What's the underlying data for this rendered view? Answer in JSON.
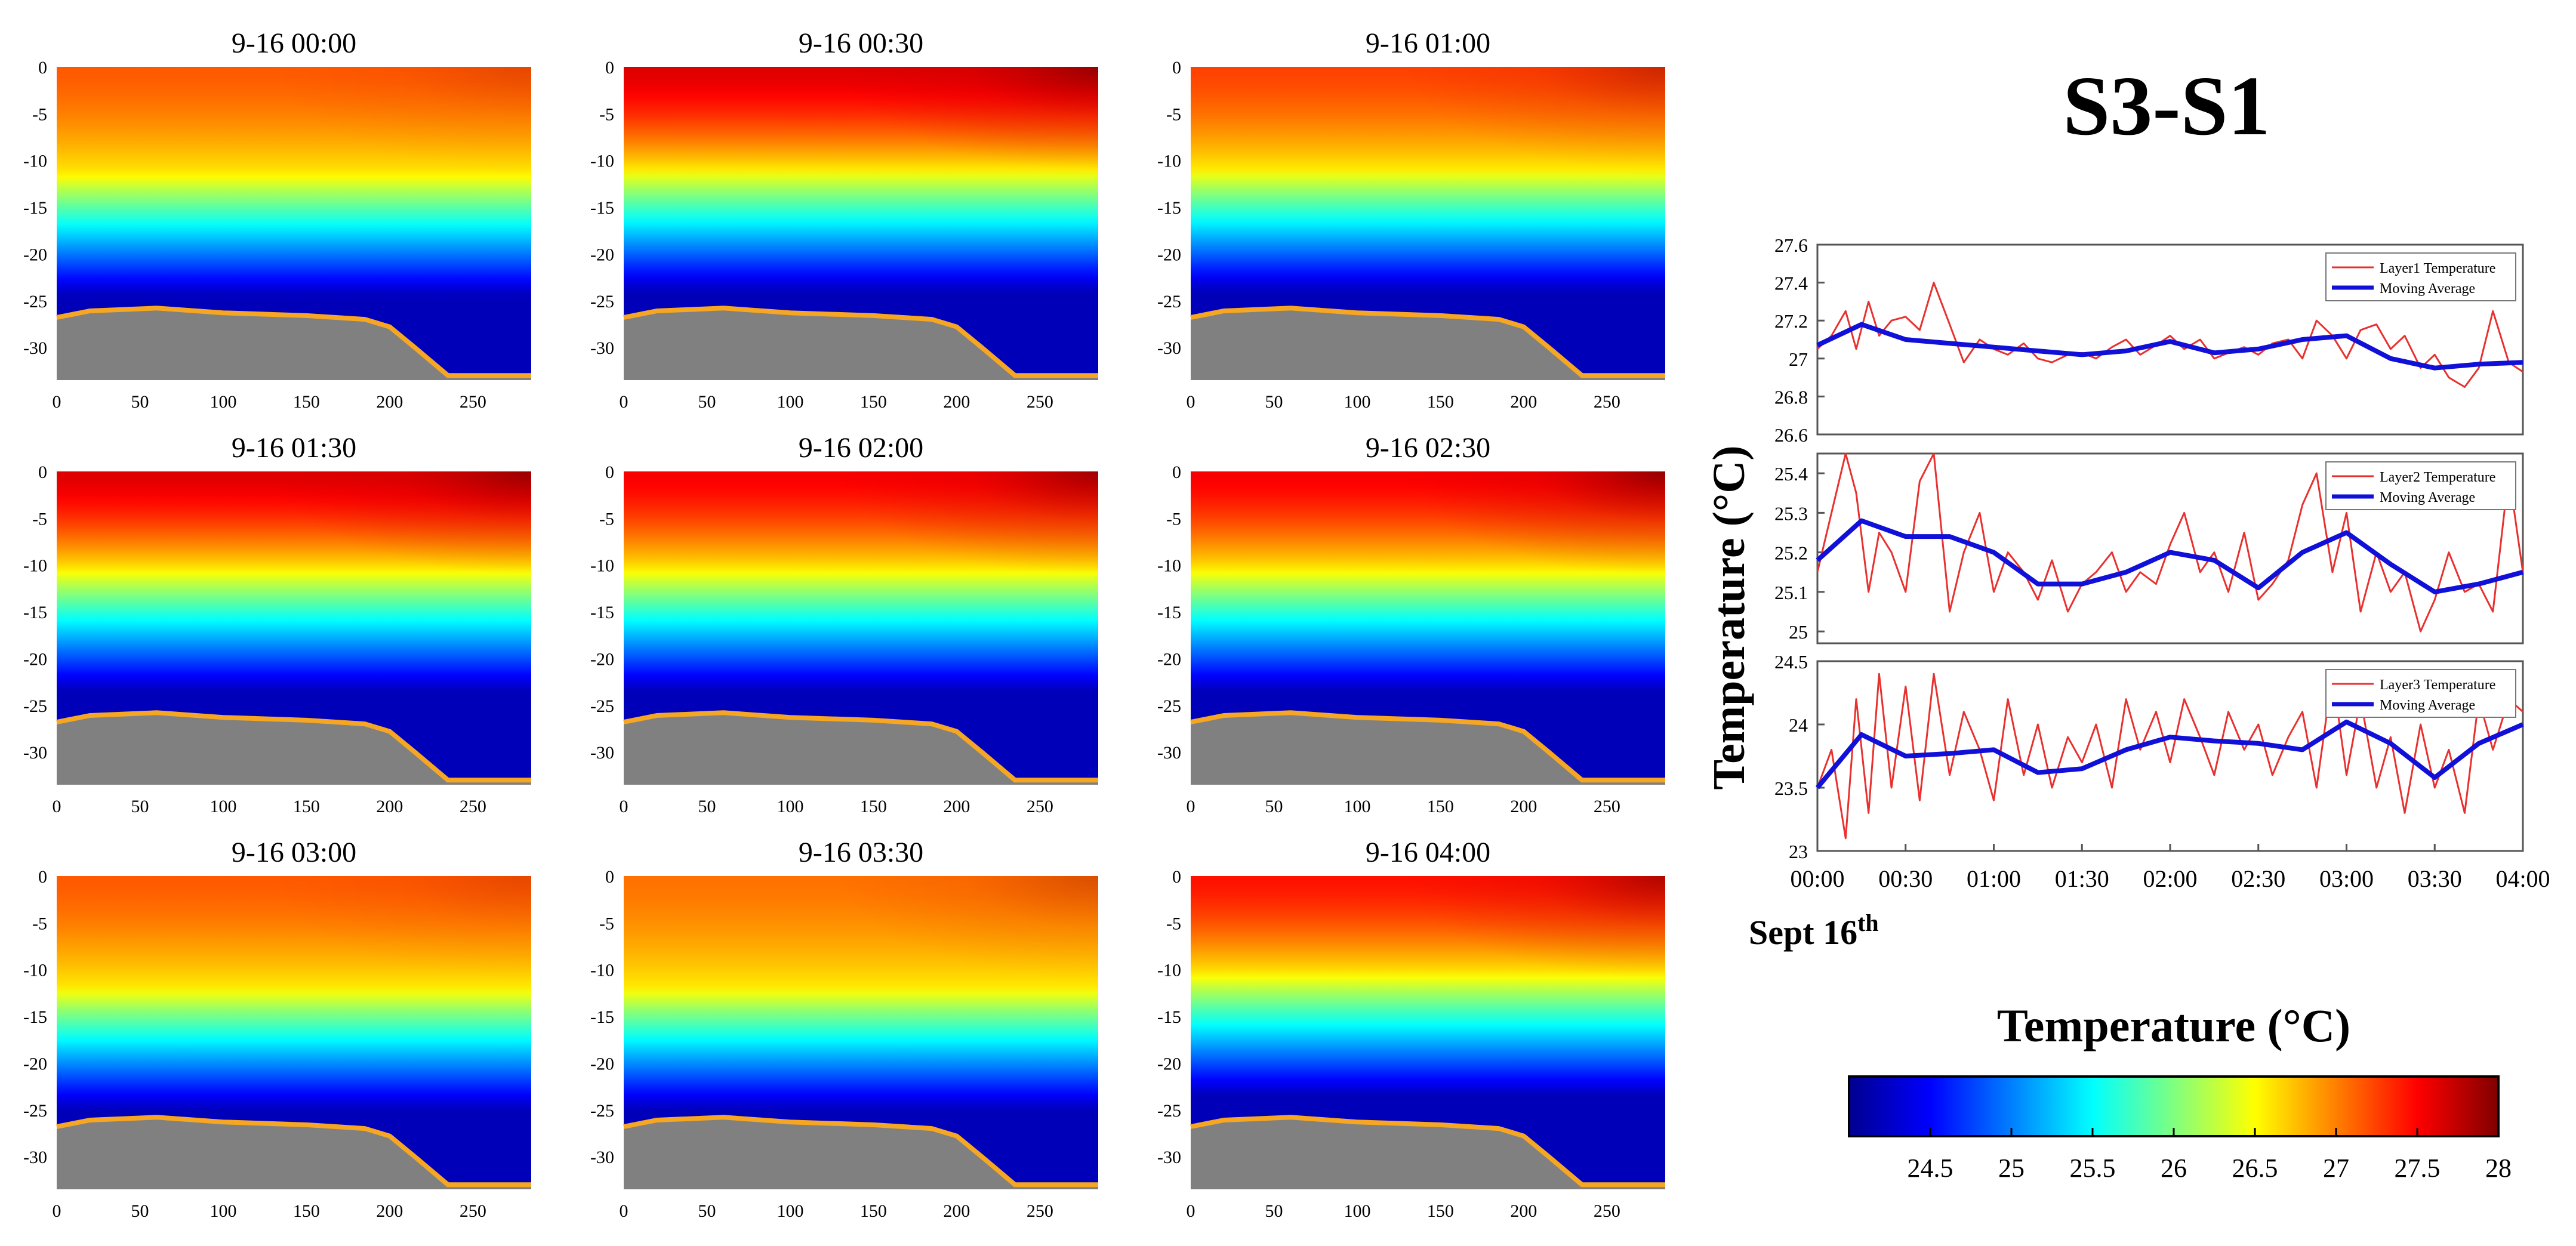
{
  "figure": {
    "main_title": "S3-S1",
    "date_label": "Sept 16",
    "date_suffix": "th"
  },
  "heatmap_panels": [
    {
      "title": "9-16 00:00",
      "surface_temp": 27.2,
      "right_hot": 0.8,
      "warm_depth": 11.5
    },
    {
      "title": "9-16 00:30",
      "surface_temp": 27.7,
      "right_hot": 0.3,
      "warm_depth": 11
    },
    {
      "title": "9-16 01:00",
      "surface_temp": 27.3,
      "right_hot": 0.6,
      "warm_depth": 11
    },
    {
      "title": "9-16 01:30",
      "surface_temp": 27.7,
      "right_hot": 0.3,
      "warm_depth": 10.5
    },
    {
      "title": "9-16 02:00",
      "surface_temp": 27.6,
      "right_hot": 0.3,
      "warm_depth": 10.5
    },
    {
      "title": "9-16 02:30",
      "surface_temp": 27.6,
      "right_hot": 0.2,
      "warm_depth": 10.5
    },
    {
      "title": "9-16 03:00",
      "surface_temp": 27.2,
      "right_hot": 0.8,
      "warm_depth": 12
    },
    {
      "title": "9-16 03:30",
      "surface_temp": 27.1,
      "right_hot": 0.7,
      "warm_depth": 12
    },
    {
      "title": "9-16 04:00",
      "surface_temp": 27.5,
      "right_hot": 0.4,
      "warm_depth": 10.5
    }
  ],
  "heatmap_axes": {
    "x_ticks": [
      "0",
      "50",
      "100",
      "150",
      "200",
      "250"
    ],
    "y_ticks": [
      "0",
      "-5",
      "-10",
      "-15",
      "-20",
      "-25",
      "-30"
    ],
    "xlim": [
      0,
      285
    ],
    "ylim": [
      -33.5,
      0
    ],
    "seabed_profile": [
      [
        0,
        -26.8
      ],
      [
        20,
        -26.1
      ],
      [
        60,
        -25.8
      ],
      [
        100,
        -26.3
      ],
      [
        150,
        -26.6
      ],
      [
        185,
        -27.0
      ],
      [
        200,
        -27.8
      ],
      [
        215,
        -30.0
      ],
      [
        235,
        -33.0
      ],
      [
        285,
        -33.0
      ]
    ],
    "bed_color": "#808080",
    "bed_edge_color": "#f5a623"
  },
  "colorbar": {
    "title": "Temperature (°C)",
    "ticks": [
      "24.5",
      "25",
      "25.5",
      "26",
      "26.5",
      "27",
      "27.5",
      "28"
    ],
    "range": [
      24.0,
      28.0
    ],
    "colormap": "jet"
  },
  "chart_data": {
    "type": "line",
    "ylabel": "Temperature (°C)",
    "x_ticks": [
      "00:00",
      "00:30",
      "01:00",
      "01:30",
      "02:00",
      "02:30",
      "03:00",
      "03:30",
      "04:00"
    ],
    "xlim_hours": [
      0,
      4
    ],
    "series_colors": {
      "raw": "#e8312f",
      "avg": "#1010d8"
    },
    "panels": [
      {
        "ylim": [
          26.6,
          27.6
        ],
        "y_ticks": [
          "26.6",
          "26.8",
          "27",
          "27.2",
          "27.4",
          "27.6"
        ],
        "legend": [
          "Layer1 Temperature",
          "Moving Average"
        ],
        "series": [
          {
            "name": "Layer1 Temperature",
            "x": [
              0,
              0.08,
              0.16,
              0.22,
              0.29,
              0.35,
              0.42,
              0.5,
              0.58,
              0.66,
              0.75,
              0.83,
              0.92,
              1.0,
              1.08,
              1.17,
              1.25,
              1.33,
              1.42,
              1.5,
              1.58,
              1.67,
              1.75,
              1.83,
              1.92,
              2.0,
              2.08,
              2.17,
              2.25,
              2.33,
              2.42,
              2.5,
              2.58,
              2.67,
              2.75,
              2.83,
              2.92,
              3.0,
              3.08,
              3.17,
              3.25,
              3.33,
              3.42,
              3.5,
              3.58,
              3.67,
              3.75,
              3.83,
              3.92,
              4.0
            ],
            "values": [
              27.05,
              27.12,
              27.25,
              27.05,
              27.3,
              27.12,
              27.2,
              27.22,
              27.15,
              27.4,
              27.18,
              26.98,
              27.1,
              27.05,
              27.02,
              27.08,
              27.0,
              26.98,
              27.02,
              27.03,
              27.0,
              27.06,
              27.1,
              27.02,
              27.07,
              27.12,
              27.05,
              27.1,
              27.0,
              27.03,
              27.06,
              27.02,
              27.08,
              27.1,
              27.0,
              27.2,
              27.12,
              27.0,
              27.15,
              27.18,
              27.05,
              27.12,
              26.95,
              27.02,
              26.9,
              26.85,
              26.95,
              27.25,
              26.98,
              26.93
            ]
          },
          {
            "name": "Moving Average",
            "x": [
              0,
              0.25,
              0.5,
              0.75,
              1.0,
              1.25,
              1.5,
              1.75,
              2.0,
              2.25,
              2.5,
              2.75,
              3.0,
              3.25,
              3.5,
              3.75,
              4.0
            ],
            "values": [
              27.07,
              27.18,
              27.1,
              27.08,
              27.06,
              27.04,
              27.02,
              27.04,
              27.09,
              27.03,
              27.05,
              27.1,
              27.12,
              27.0,
              26.95,
              26.97,
              26.98
            ]
          }
        ]
      },
      {
        "ylim": [
          24.97,
          25.45
        ],
        "y_ticks": [
          "25",
          "25.1",
          "25.2",
          "25.3",
          "25.4"
        ],
        "legend": [
          "Layer2 Temperature",
          "Moving Average"
        ],
        "series": [
          {
            "name": "Layer2 Temperature",
            "x": [
              0,
              0.08,
              0.16,
              0.22,
              0.29,
              0.35,
              0.42,
              0.5,
              0.58,
              0.66,
              0.75,
              0.83,
              0.92,
              1.0,
              1.08,
              1.17,
              1.25,
              1.33,
              1.42,
              1.5,
              1.58,
              1.67,
              1.75,
              1.83,
              1.92,
              2.0,
              2.08,
              2.17,
              2.25,
              2.33,
              2.42,
              2.5,
              2.58,
              2.67,
              2.75,
              2.83,
              2.92,
              3.0,
              3.08,
              3.17,
              3.25,
              3.33,
              3.42,
              3.5,
              3.58,
              3.67,
              3.75,
              3.83,
              3.92,
              4.0
            ],
            "values": [
              25.15,
              25.3,
              25.45,
              25.35,
              25.1,
              25.25,
              25.2,
              25.1,
              25.38,
              25.45,
              25.05,
              25.2,
              25.3,
              25.1,
              25.2,
              25.15,
              25.08,
              25.18,
              25.05,
              25.12,
              25.15,
              25.2,
              25.1,
              25.15,
              25.12,
              25.22,
              25.3,
              25.15,
              25.2,
              25.1,
              25.25,
              25.08,
              25.12,
              25.18,
              25.32,
              25.4,
              25.15,
              25.3,
              25.05,
              25.2,
              25.1,
              25.15,
              25.0,
              25.08,
              25.2,
              25.1,
              25.12,
              25.05,
              25.4,
              25.15
            ]
          },
          {
            "name": "Moving Average",
            "x": [
              0,
              0.25,
              0.5,
              0.75,
              1.0,
              1.25,
              1.5,
              1.75,
              2.0,
              2.25,
              2.5,
              2.75,
              3.0,
              3.25,
              3.5,
              3.75,
              4.0
            ],
            "values": [
              25.18,
              25.28,
              25.24,
              25.24,
              25.2,
              25.12,
              25.12,
              25.15,
              25.2,
              25.18,
              25.11,
              25.2,
              25.25,
              25.17,
              25.1,
              25.12,
              25.15
            ]
          }
        ]
      },
      {
        "ylim": [
          23.0,
          24.5
        ],
        "y_ticks": [
          "23",
          "23.5",
          "24",
          "24.5"
        ],
        "legend": [
          "Layer3 Temperature",
          "Moving Average"
        ],
        "series": [
          {
            "name": "Layer3 Temperature",
            "x": [
              0,
              0.08,
              0.16,
              0.22,
              0.29,
              0.35,
              0.42,
              0.5,
              0.58,
              0.66,
              0.75,
              0.83,
              0.92,
              1.0,
              1.08,
              1.17,
              1.25,
              1.33,
              1.42,
              1.5,
              1.58,
              1.67,
              1.75,
              1.83,
              1.92,
              2.0,
              2.08,
              2.17,
              2.25,
              2.33,
              2.42,
              2.5,
              2.58,
              2.67,
              2.75,
              2.83,
              2.92,
              3.0,
              3.08,
              3.17,
              3.25,
              3.33,
              3.42,
              3.5,
              3.58,
              3.67,
              3.75,
              3.83,
              3.92,
              4.0
            ],
            "values": [
              23.5,
              23.8,
              23.1,
              24.2,
              23.3,
              24.4,
              23.5,
              24.3,
              23.4,
              24.4,
              23.6,
              24.1,
              23.8,
              23.4,
              24.2,
              23.6,
              24.0,
              23.5,
              23.9,
              23.7,
              24.0,
              23.5,
              24.2,
              23.8,
              24.1,
              23.7,
              24.2,
              23.9,
              23.6,
              24.1,
              23.8,
              24.0,
              23.6,
              23.9,
              24.1,
              23.5,
              24.4,
              23.6,
              24.2,
              23.5,
              23.9,
              23.3,
              24.0,
              23.5,
              23.8,
              23.3,
              24.2,
              23.8,
              24.2,
              24.1
            ]
          },
          {
            "name": "Moving Average",
            "x": [
              0,
              0.25,
              0.5,
              0.75,
              1.0,
              1.25,
              1.5,
              1.75,
              2.0,
              2.25,
              2.5,
              2.75,
              3.0,
              3.25,
              3.5,
              3.75,
              4.0
            ],
            "values": [
              23.5,
              23.92,
              23.75,
              23.77,
              23.8,
              23.62,
              23.65,
              23.8,
              23.9,
              23.87,
              23.85,
              23.8,
              24.02,
              23.85,
              23.58,
              23.85,
              24.0
            ]
          }
        ]
      }
    ]
  }
}
